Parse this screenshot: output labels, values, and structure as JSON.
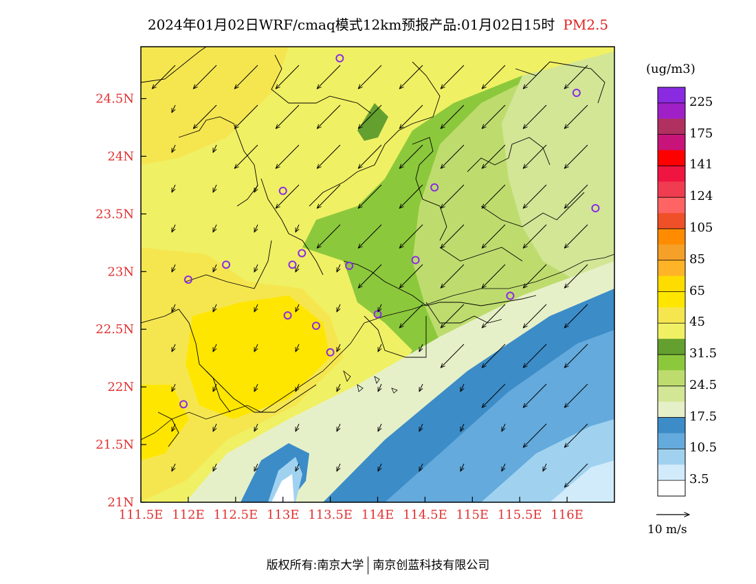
{
  "title": {
    "main": "2024年01月02日WRF/cmaq模式12km预报产品:01月02日15时",
    "pollutant": "PM2.5"
  },
  "axes": {
    "x_ticks": [
      "111.5E",
      "112E",
      "112.5E",
      "113E",
      "113.5E",
      "114E",
      "114.5E",
      "115E",
      "115.5E",
      "116E"
    ],
    "x_values": [
      111.5,
      112,
      112.5,
      113,
      113.5,
      114,
      114.5,
      115,
      115.5,
      116
    ],
    "y_ticks": [
      "21N",
      "21.5N",
      "22N",
      "22.5N",
      "23N",
      "23.5N",
      "24N",
      "24.5N"
    ],
    "y_values": [
      21,
      21.5,
      22,
      22.5,
      23,
      23.5,
      24,
      24.5
    ],
    "lon_range": [
      111.5,
      116.5
    ],
    "lat_range": [
      21,
      24.95
    ]
  },
  "legend": {
    "unit": "(ug/m3)",
    "labels": [
      "225",
      "175",
      "141",
      "124",
      "105",
      "85",
      "65",
      "45",
      "31.5",
      "24.5",
      "17.5",
      "10.5",
      "3.5"
    ],
    "colors_top_to_bottom": [
      "#8a2be2",
      "#a020c8",
      "#b03060",
      "#c8147a",
      "#ff0000",
      "#f01440",
      "#f03c50",
      "#ff6464",
      "#f05028",
      "#ff8c00",
      "#f5a028",
      "#ffb428",
      "#ffdc00",
      "#ffe600",
      "#f5e650",
      "#f0f064",
      "#64a030",
      "#8cc83c",
      "#bedc6e",
      "#d2e696",
      "#e6f0c8",
      "#3c8cc8",
      "#64aadc",
      "#a0d2f0",
      "#d2ebfa",
      "#ffffff"
    ]
  },
  "wind_reference": {
    "label": "10 m/s"
  },
  "stations": [
    [
      113.6,
      24.85
    ],
    [
      116.1,
      24.55
    ],
    [
      113.0,
      23.7
    ],
    [
      114.6,
      23.73
    ],
    [
      116.3,
      23.55
    ],
    [
      113.2,
      23.16
    ],
    [
      112.4,
      23.06
    ],
    [
      113.1,
      23.06
    ],
    [
      113.7,
      23.05
    ],
    [
      114.4,
      23.1
    ],
    [
      112.0,
      22.93
    ],
    [
      115.4,
      22.79
    ],
    [
      113.05,
      22.62
    ],
    [
      113.35,
      22.53
    ],
    [
      114.0,
      22.63
    ],
    [
      113.5,
      22.3
    ],
    [
      111.95,
      21.85
    ]
  ],
  "footer": {
    "left": "版权所有:南京大学",
    "right": "南京创蓝科技有限公司"
  }
}
